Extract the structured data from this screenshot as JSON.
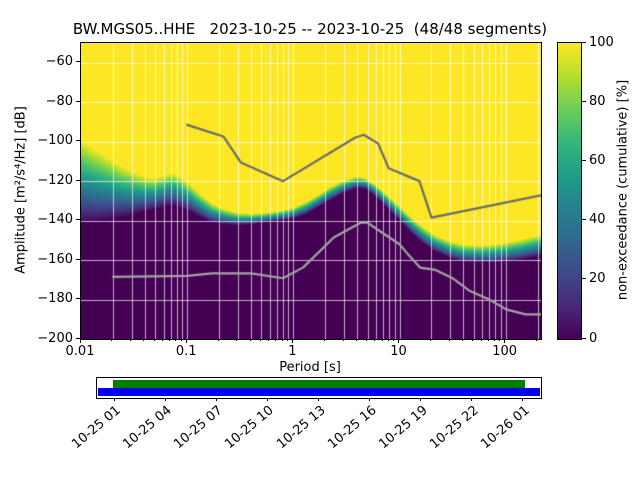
{
  "title": "BW.MGS05..HHE   2023-10-25 -- 2023-10-25  (48/48 segments)",
  "header": {
    "station_id": "BW.MGS05..HHE",
    "date_range": "2023-10-25 -- 2023-10-25",
    "segments": "48/48 segments"
  },
  "axes": {
    "xlabel": "Period [s]",
    "ylabel": "Amplitude [m²/s⁴/Hz] [dB]",
    "x_tick_values": [
      0.01,
      0.1,
      1,
      10,
      100
    ],
    "x_tick_labels": [
      "0.01",
      "0.1",
      "1",
      "10",
      "100"
    ],
    "y_tick_values": [
      -60,
      -80,
      -100,
      -120,
      -140,
      -160,
      -180,
      -200
    ],
    "y_tick_labels": [
      "−60",
      "−80",
      "−100",
      "−120",
      "−140",
      "−160",
      "−180",
      "−200"
    ]
  },
  "colorbar": {
    "label": "non-exceedance (cumulative) [%]",
    "tick_values": [
      0,
      20,
      40,
      60,
      80,
      100
    ],
    "range": [
      0,
      100
    ],
    "colormap": "viridis",
    "colors": [
      "#440154",
      "#482878",
      "#3e4989",
      "#31688e",
      "#26828e",
      "#1f9e89",
      "#35b779",
      "#6dcd59",
      "#b4de2c",
      "#fde725"
    ]
  },
  "coverage_bar": {
    "data_color": "#008000",
    "extent_color": "#0000ee",
    "time_tick_labels": [
      "10-25 01",
      "10-25 04",
      "10-25 07",
      "10-25 10",
      "10-25 13",
      "10-25 16",
      "10-25 19",
      "10-25 22",
      "10-26 01"
    ]
  },
  "chart_data": {
    "type": "heatmap",
    "title": "BW.MGS05..HHE   2023-10-25 -- 2023-10-25  (48/48 segments)",
    "xlabel": "Period [s]",
    "ylabel": "Amplitude [m^2/s^4/Hz] [dB]",
    "colorbar_label": "non-exceedance (cumulative) [%]",
    "colorbar_range": [
      0,
      100
    ],
    "xscale": "log",
    "xlim": [
      0.01,
      215
    ],
    "ylim": [
      -200,
      -50
    ],
    "grid": true,
    "grid_color": "rgba(255,255,255,0.75)",
    "ppsd_distribution": {
      "description": "cumulative non-exceedance PSD distribution; db_at_0pct is amplitude where color leaves 0% (dark), db_at_100pct where it reaches 100% (yellow)",
      "periods_s": [
        0.01,
        0.013,
        0.017,
        0.022,
        0.028,
        0.037,
        0.048,
        0.062,
        0.07,
        0.08,
        0.1,
        0.13,
        0.17,
        0.22,
        0.3,
        0.4,
        0.55,
        0.75,
        1.0,
        1.3,
        1.7,
        2.2,
        3.0,
        4.0,
        4.8,
        6.0,
        7.5,
        10,
        13,
        17,
        22,
        30,
        40,
        55,
        75,
        100,
        140,
        215
      ],
      "db_at_0pct": [
        -141,
        -141,
        -140,
        -139,
        -138,
        -136,
        -134.5,
        -133,
        -132.5,
        -133,
        -135,
        -138,
        -141,
        -142,
        -142.5,
        -142,
        -141,
        -140,
        -139,
        -137,
        -133.5,
        -130,
        -126,
        -123.5,
        -124,
        -128,
        -133,
        -140,
        -146.5,
        -152,
        -156,
        -159,
        -161,
        -161.5,
        -161.5,
        -161,
        -160,
        -158
      ],
      "db_at_100pct": [
        -99,
        -103,
        -107,
        -111,
        -114,
        -117,
        -118.5,
        -117,
        -115.5,
        -116.5,
        -120,
        -126,
        -131,
        -134,
        -136,
        -136.5,
        -136,
        -135,
        -133.5,
        -130.5,
        -127,
        -123,
        -119.5,
        -117.5,
        -118.5,
        -122,
        -126.5,
        -132.5,
        -138.5,
        -143.5,
        -147.5,
        -150.5,
        -152,
        -152.5,
        -152,
        -151,
        -149.5,
        -147
      ]
    },
    "noise_models": {
      "high_noise_model": {
        "name": "Peterson NHNM",
        "color": "#6b6b6b",
        "periods_s": [
          0.1,
          0.22,
          0.32,
          0.8,
          3.8,
          4.6,
          6.3,
          7.9,
          15.4,
          20,
          215
        ],
        "db": [
          -91.5,
          -97.4,
          -110.5,
          -120.0,
          -98.0,
          -96.5,
          -101.0,
          -113.5,
          -120.0,
          -138.5,
          -127.2
        ]
      },
      "low_noise_model": {
        "name": "Peterson NLNM",
        "color": "#a3a3a3",
        "periods_s": [
          0.02,
          0.1,
          0.17,
          0.4,
          0.8,
          1.24,
          2.4,
          4.3,
          5.0,
          6.0,
          10,
          12,
          15.6,
          21.9,
          31.6,
          45,
          70,
          101,
          154,
          215
        ],
        "db": [
          -168.5,
          -168.0,
          -166.7,
          -166.7,
          -169.2,
          -163.7,
          -148.6,
          -141.1,
          -141.1,
          -144.0,
          -152.0,
          -157.0,
          -163.8,
          -165.0,
          -169.2,
          -175.4,
          -180.0,
          -185.0,
          -187.5,
          -187.5
        ]
      }
    }
  }
}
